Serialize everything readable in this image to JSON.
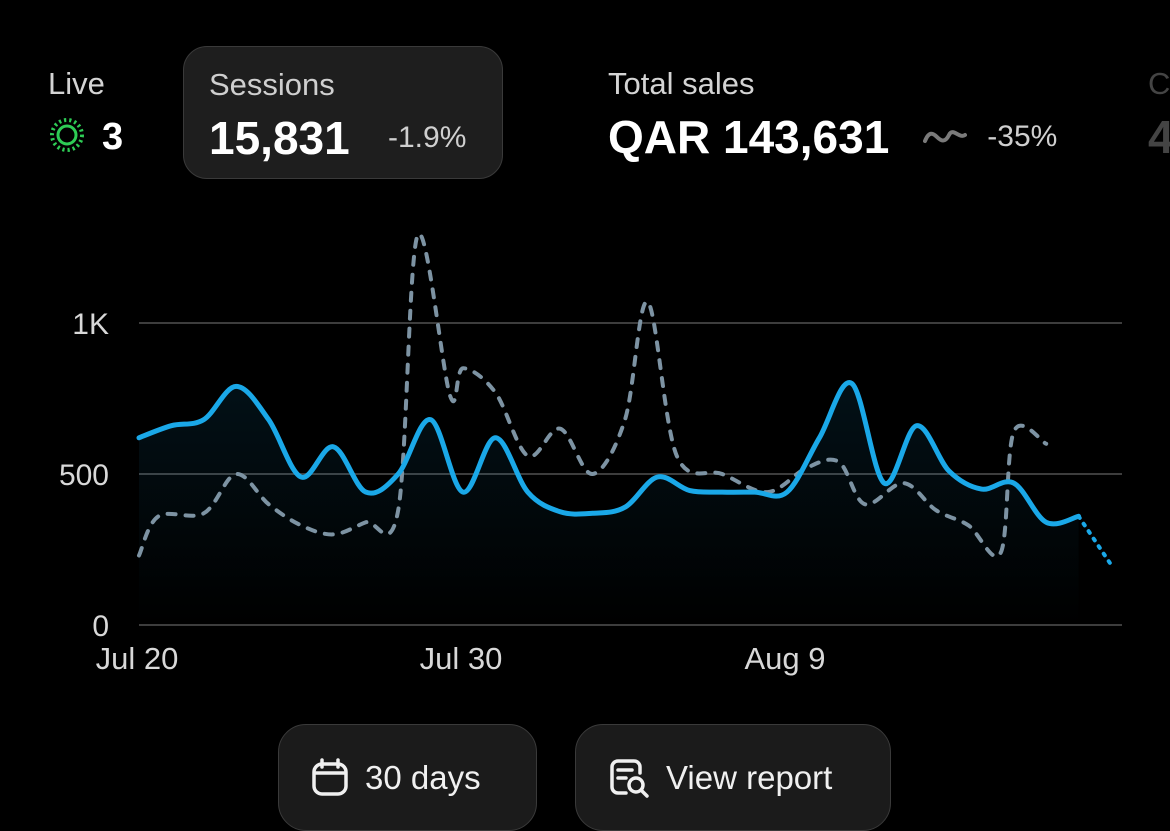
{
  "metrics": {
    "live": {
      "label": "Live",
      "value": "3",
      "icon": "live-pulse-icon",
      "accent": "#2ecc55"
    },
    "sessions": {
      "label": "Sessions",
      "value": "15,831",
      "change": "-1.9%"
    },
    "total_sales": {
      "label": "Total sales",
      "value": "QAR 143,631",
      "change": "-35%",
      "icon": "sparkline-icon"
    }
  },
  "buttons": {
    "days": {
      "label": "30 days",
      "icon": "calendar-icon"
    },
    "report": {
      "label": "View report",
      "icon": "report-search-icon"
    }
  },
  "chart_data": {
    "type": "line",
    "ylim": [
      0,
      1300
    ],
    "yticks": [
      {
        "v": 0,
        "label": "0"
      },
      {
        "v": 500,
        "label": "500"
      },
      {
        "v": 1000,
        "label": "1K"
      }
    ],
    "xticks": [
      {
        "day": 0,
        "label": "Jul 20"
      },
      {
        "day": 10,
        "label": "Jul 30"
      },
      {
        "day": 20,
        "label": "Aug 9"
      }
    ],
    "colors": {
      "current": "#1aa8e8",
      "previous": "#7d93a3",
      "grid": "#3d3d3d"
    },
    "series": [
      {
        "role": "current",
        "style": "solid",
        "points": [
          [
            0,
            620
          ],
          [
            1,
            660
          ],
          [
            2,
            680
          ],
          [
            3,
            790
          ],
          [
            4,
            680
          ],
          [
            5,
            490
          ],
          [
            6,
            590
          ],
          [
            7,
            440
          ],
          [
            8,
            500
          ],
          [
            9,
            680
          ],
          [
            10,
            440
          ],
          [
            11,
            620
          ],
          [
            12,
            440
          ],
          [
            13,
            375
          ],
          [
            14,
            370
          ],
          [
            15,
            390
          ],
          [
            16,
            490
          ],
          [
            17,
            445
          ],
          [
            18,
            440
          ],
          [
            19,
            440
          ],
          [
            20,
            440
          ],
          [
            21,
            620
          ],
          [
            22,
            800
          ],
          [
            23,
            470
          ],
          [
            24,
            660
          ],
          [
            25,
            510
          ],
          [
            26,
            450
          ],
          [
            27,
            470
          ],
          [
            28,
            340
          ],
          [
            29,
            360
          ]
        ]
      },
      {
        "role": "current-projection",
        "style": "dotted",
        "points": [
          [
            29,
            360
          ],
          [
            30,
            200
          ]
        ]
      },
      {
        "role": "previous",
        "style": "dashed",
        "points": [
          [
            0,
            230
          ],
          [
            0.6,
            360
          ],
          [
            2,
            370
          ],
          [
            3,
            500
          ],
          [
            4,
            400
          ],
          [
            5,
            330
          ],
          [
            6,
            300
          ],
          [
            7,
            340
          ],
          [
            8,
            380
          ],
          [
            8.6,
            1290
          ],
          [
            9.6,
            760
          ],
          [
            10,
            850
          ],
          [
            11,
            770
          ],
          [
            12,
            560
          ],
          [
            13,
            650
          ],
          [
            14,
            500
          ],
          [
            15,
            680
          ],
          [
            15.7,
            1070
          ],
          [
            16.6,
            560
          ],
          [
            18,
            500
          ],
          [
            19.4,
            440
          ],
          [
            20.6,
            520
          ],
          [
            21.6,
            540
          ],
          [
            22.4,
            400
          ],
          [
            23.6,
            470
          ],
          [
            24.6,
            380
          ],
          [
            25.6,
            330
          ],
          [
            26.6,
            240
          ],
          [
            27,
            640
          ],
          [
            28,
            600
          ]
        ]
      }
    ]
  }
}
